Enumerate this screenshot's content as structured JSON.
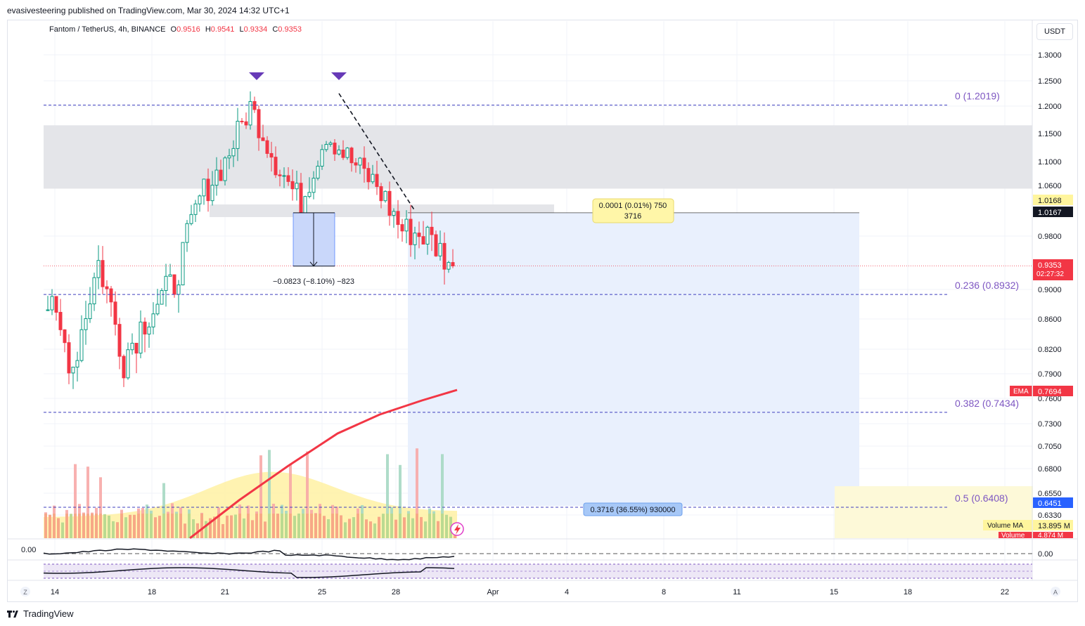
{
  "publisher": "evasivesteering published on TradingView.com, Mar 30, 2024 14:32 UTC+1",
  "legend": {
    "symbol": "Fantom / TetherUS, 4h, BINANCE",
    "open_label": "O",
    "open": "0.9516",
    "high_label": "H",
    "high": "0.9541",
    "low_label": "L",
    "low": "0.9334",
    "close_label": "C",
    "close": "0.9353"
  },
  "currency_button": "USDT",
  "footer_brand": "TradingView",
  "colors": {
    "up": "#089981",
    "down": "#f23645",
    "ema": "#f23645",
    "fib": "#7e57c2",
    "zone": "#e0e3eb",
    "projection": "#e9f0fd",
    "volume_ma": "#fff2a8",
    "marker": "#673ab7"
  },
  "chart_data": {
    "type": "candlestick",
    "interval": "4h",
    "x_axis_labels": [
      "14",
      "18",
      "21",
      "25",
      "28",
      "Apr",
      "4",
      "8",
      "11",
      "15",
      "18",
      "22"
    ],
    "y_axis_labels": [
      "1.3000",
      "1.2500",
      "1.2000",
      "1.1500",
      "1.1000",
      "1.0600",
      "0.9800",
      "0.9000",
      "0.8600",
      "0.8200",
      "0.7900",
      "0.7600",
      "0.7300",
      "0.7050",
      "0.6800",
      "0.6550",
      "0.6330"
    ],
    "y_ticks": [
      1.3,
      1.25,
      1.2,
      1.15,
      1.1,
      1.06,
      0.98,
      0.9,
      0.86,
      0.82,
      0.79,
      0.76,
      0.73,
      0.705,
      0.68,
      0.655,
      0.633
    ],
    "ylim": [
      0.613,
      1.33
    ],
    "key_points": [
      {
        "date": "Mar 14",
        "close": 0.88
      },
      {
        "date": "Mar 15",
        "close": 0.8
      },
      {
        "date": "Mar 16",
        "close": 0.94
      },
      {
        "date": "Mar 17",
        "close": 0.81
      },
      {
        "date": "Mar 18",
        "close": 0.87
      },
      {
        "date": "Mar 19",
        "close": 0.91
      },
      {
        "date": "Mar 20",
        "close": 1.04
      },
      {
        "date": "Mar 21",
        "close": 1.1
      },
      {
        "date": "Mar 22",
        "close": 1.2
      },
      {
        "date": "Mar 23",
        "close": 1.1
      },
      {
        "date": "Mar 24",
        "close": 1.03
      },
      {
        "date": "Mar 25",
        "close": 1.15
      },
      {
        "date": "Mar 26",
        "close": 1.1
      },
      {
        "date": "Mar 27",
        "close": 1.06
      },
      {
        "date": "Mar 28",
        "close": 0.99
      },
      {
        "date": "Mar 29",
        "close": 0.98
      },
      {
        "date": "Mar 30",
        "close": 0.9353
      }
    ],
    "ema": {
      "label": "EMA",
      "value": "0.7694",
      "points": [
        {
          "date": "Mar 19",
          "v": 0.62
        },
        {
          "date": "Mar 21",
          "v": 0.655
        },
        {
          "date": "Mar 23",
          "v": 0.69
        },
        {
          "date": "Mar 25",
          "v": 0.716
        },
        {
          "date": "Mar 27",
          "v": 0.737
        },
        {
          "date": "Mar 29",
          "v": 0.755
        },
        {
          "date": "Mar 30",
          "v": 0.7694
        }
      ]
    },
    "fib_levels": [
      {
        "label": "0 (1.2019)",
        "price": 1.2019
      },
      {
        "label": "0.236 (0.8932)",
        "price": 0.8932
      },
      {
        "label": "0.382 (0.7434)",
        "price": 0.7434
      },
      {
        "label": "0.5 (0.6408)",
        "price": 0.6408
      }
    ],
    "resistance_zone": {
      "from": 1.055,
      "to": 1.165
    },
    "support_zone": {
      "from": 1.01,
      "to": 1.03
    },
    "measure_down": {
      "text": "−0.0823 (−8.10%) −823"
    },
    "measure_flat": {
      "text": "0.0001 (0.01%) 750",
      "bars": "3716"
    },
    "projection": {
      "text": "0.3716 (36.55%) 930000"
    },
    "price_labels": {
      "flat_level": "1.0168",
      "flat_level_2": "1.0167",
      "last_price": "0.9353",
      "countdown": "02:27:32",
      "fib_price": "0.6451"
    },
    "volume": {
      "ma_label": "Volume MA",
      "ma_value": "13.895 M",
      "label": "Volume",
      "value": "4.874 M"
    },
    "oscillator": {
      "value_left": "0.00",
      "value_right": "0.00"
    }
  }
}
